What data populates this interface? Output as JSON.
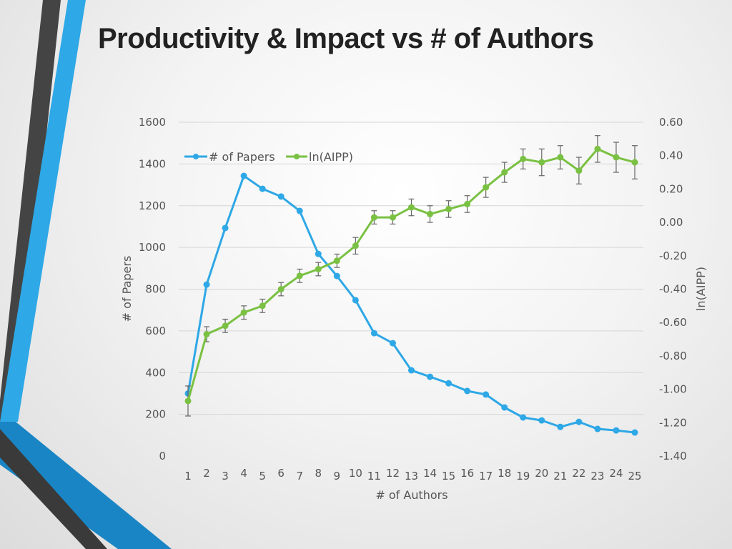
{
  "title": "Productivity & Impact vs # of Authors",
  "chart_data": {
    "type": "line",
    "title": "",
    "xlabel": "# of Authors",
    "ylabel": "# of Papers",
    "y2label": "ln(AIPP)",
    "x": [
      1,
      2,
      3,
      4,
      5,
      6,
      7,
      8,
      9,
      10,
      11,
      12,
      13,
      14,
      15,
      16,
      17,
      18,
      19,
      20,
      21,
      22,
      23,
      24,
      25
    ],
    "ylim": [
      0,
      1600
    ],
    "yticks": [
      "0",
      "200",
      "400",
      "600",
      "800",
      "1000",
      "1200",
      "1400",
      "1600"
    ],
    "y2lim": [
      -1.4,
      0.6
    ],
    "y2ticks": [
      "-1.40",
      "-1.20",
      "-1.00",
      "-0.80",
      "-0.60",
      "-0.40",
      "-0.20",
      "0.00",
      "0.20",
      "0.40",
      "0.60"
    ],
    "grid": true,
    "legend": "top-left",
    "series": [
      {
        "name": "# of Papers",
        "axis": "left",
        "color": "#2ea8e6",
        "values": [
          300,
          822,
          1093,
          1343,
          1281,
          1244,
          1175,
          969,
          863,
          747,
          589,
          541,
          411,
          380,
          349,
          312,
          295,
          233,
          185,
          171,
          140,
          164,
          130,
          123,
          113
        ]
      },
      {
        "name": "ln(AIPP)",
        "axis": "right",
        "color": "#7ac143",
        "values": [
          -1.07,
          -0.67,
          -0.62,
          -0.54,
          -0.5,
          -0.4,
          -0.32,
          -0.28,
          -0.23,
          -0.14,
          0.03,
          0.03,
          0.09,
          0.05,
          0.08,
          0.11,
          0.21,
          0.3,
          0.38,
          0.36,
          0.39,
          0.31,
          0.44,
          0.39,
          0.36
        ],
        "error": [
          0.09,
          0.045,
          0.04,
          0.04,
          0.04,
          0.04,
          0.04,
          0.04,
          0.04,
          0.05,
          0.04,
          0.04,
          0.05,
          0.05,
          0.05,
          0.05,
          0.06,
          0.06,
          0.06,
          0.08,
          0.07,
          0.08,
          0.08,
          0.09,
          0.1
        ]
      }
    ]
  }
}
